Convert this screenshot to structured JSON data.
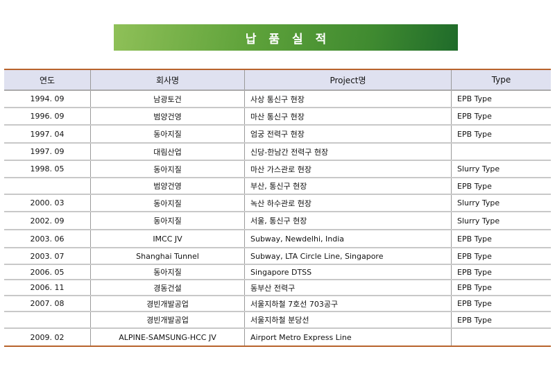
{
  "title": "납품실적",
  "headers": [
    "연도",
    "회사명",
    "Project명",
    "Type"
  ],
  "rows": [
    {
      "year": "1994. 09",
      "company": "남광토건",
      "project": "사상 통신구 현장",
      "type": "EPB Type"
    },
    {
      "year": "1996. 09",
      "company": "범양건영",
      "project": "마산 통신구 현장",
      "type": "EPB Type"
    },
    {
      "year": "1997. 04",
      "company": "동아지질",
      "project": "엄궁 전력구 현장",
      "type": "EPB Type"
    },
    {
      "year": "1997. 09",
      "company": "대림산업",
      "project": "신당-한남간 전력구 현장",
      "type": ""
    },
    {
      "year": "1998. 05",
      "company": "동아지질",
      "project": "마산 가스관로  현장",
      "type": "Slurry Type"
    },
    {
      "year": "",
      "company": "범양건영",
      "project": "부산, 통신구 현장",
      "type": "EPB Type"
    },
    {
      "year": "2000. 03",
      "company": "동아지질",
      "project": "녹산 하수관로 현장",
      "type": "Slurry Type"
    },
    {
      "year": "2002. 09",
      "company": "동아지질",
      "project": "서울, 통신구 현장",
      "type": "Slurry Type"
    },
    {
      "year": "2003. 06",
      "company": "IMCC JV",
      "project": "Subway, Newdelhi, India",
      "type": "EPB Type"
    },
    {
      "year": "2003. 07",
      "company": "Shanghai Tunnel",
      "project": "Subway, LTA Circle Line, Singapore",
      "type": "EPB Type"
    },
    {
      "year": "2006. 05",
      "company": "동아지질",
      "project": "Singapore DTSS",
      "type": "EPB Type"
    },
    {
      "year": "2006. 11",
      "company": "경동건설",
      "project": "동부산 전력구",
      "type": "EPB Type"
    },
    {
      "year": "2007. 08",
      "company": "경빈개발공업",
      "project": "서울지하철 7호선 703공구",
      "type": "EPB Type"
    },
    {
      "year": "",
      "company": "경빈개발공업",
      "project": "서울지하철 분당선",
      "type": "EPB Type"
    },
    {
      "year": "2009. 02",
      "company": "ALPINE-SAMSUNG-HCC JV",
      "project": "Airport Metro Express Line",
      "type": ""
    }
  ]
}
